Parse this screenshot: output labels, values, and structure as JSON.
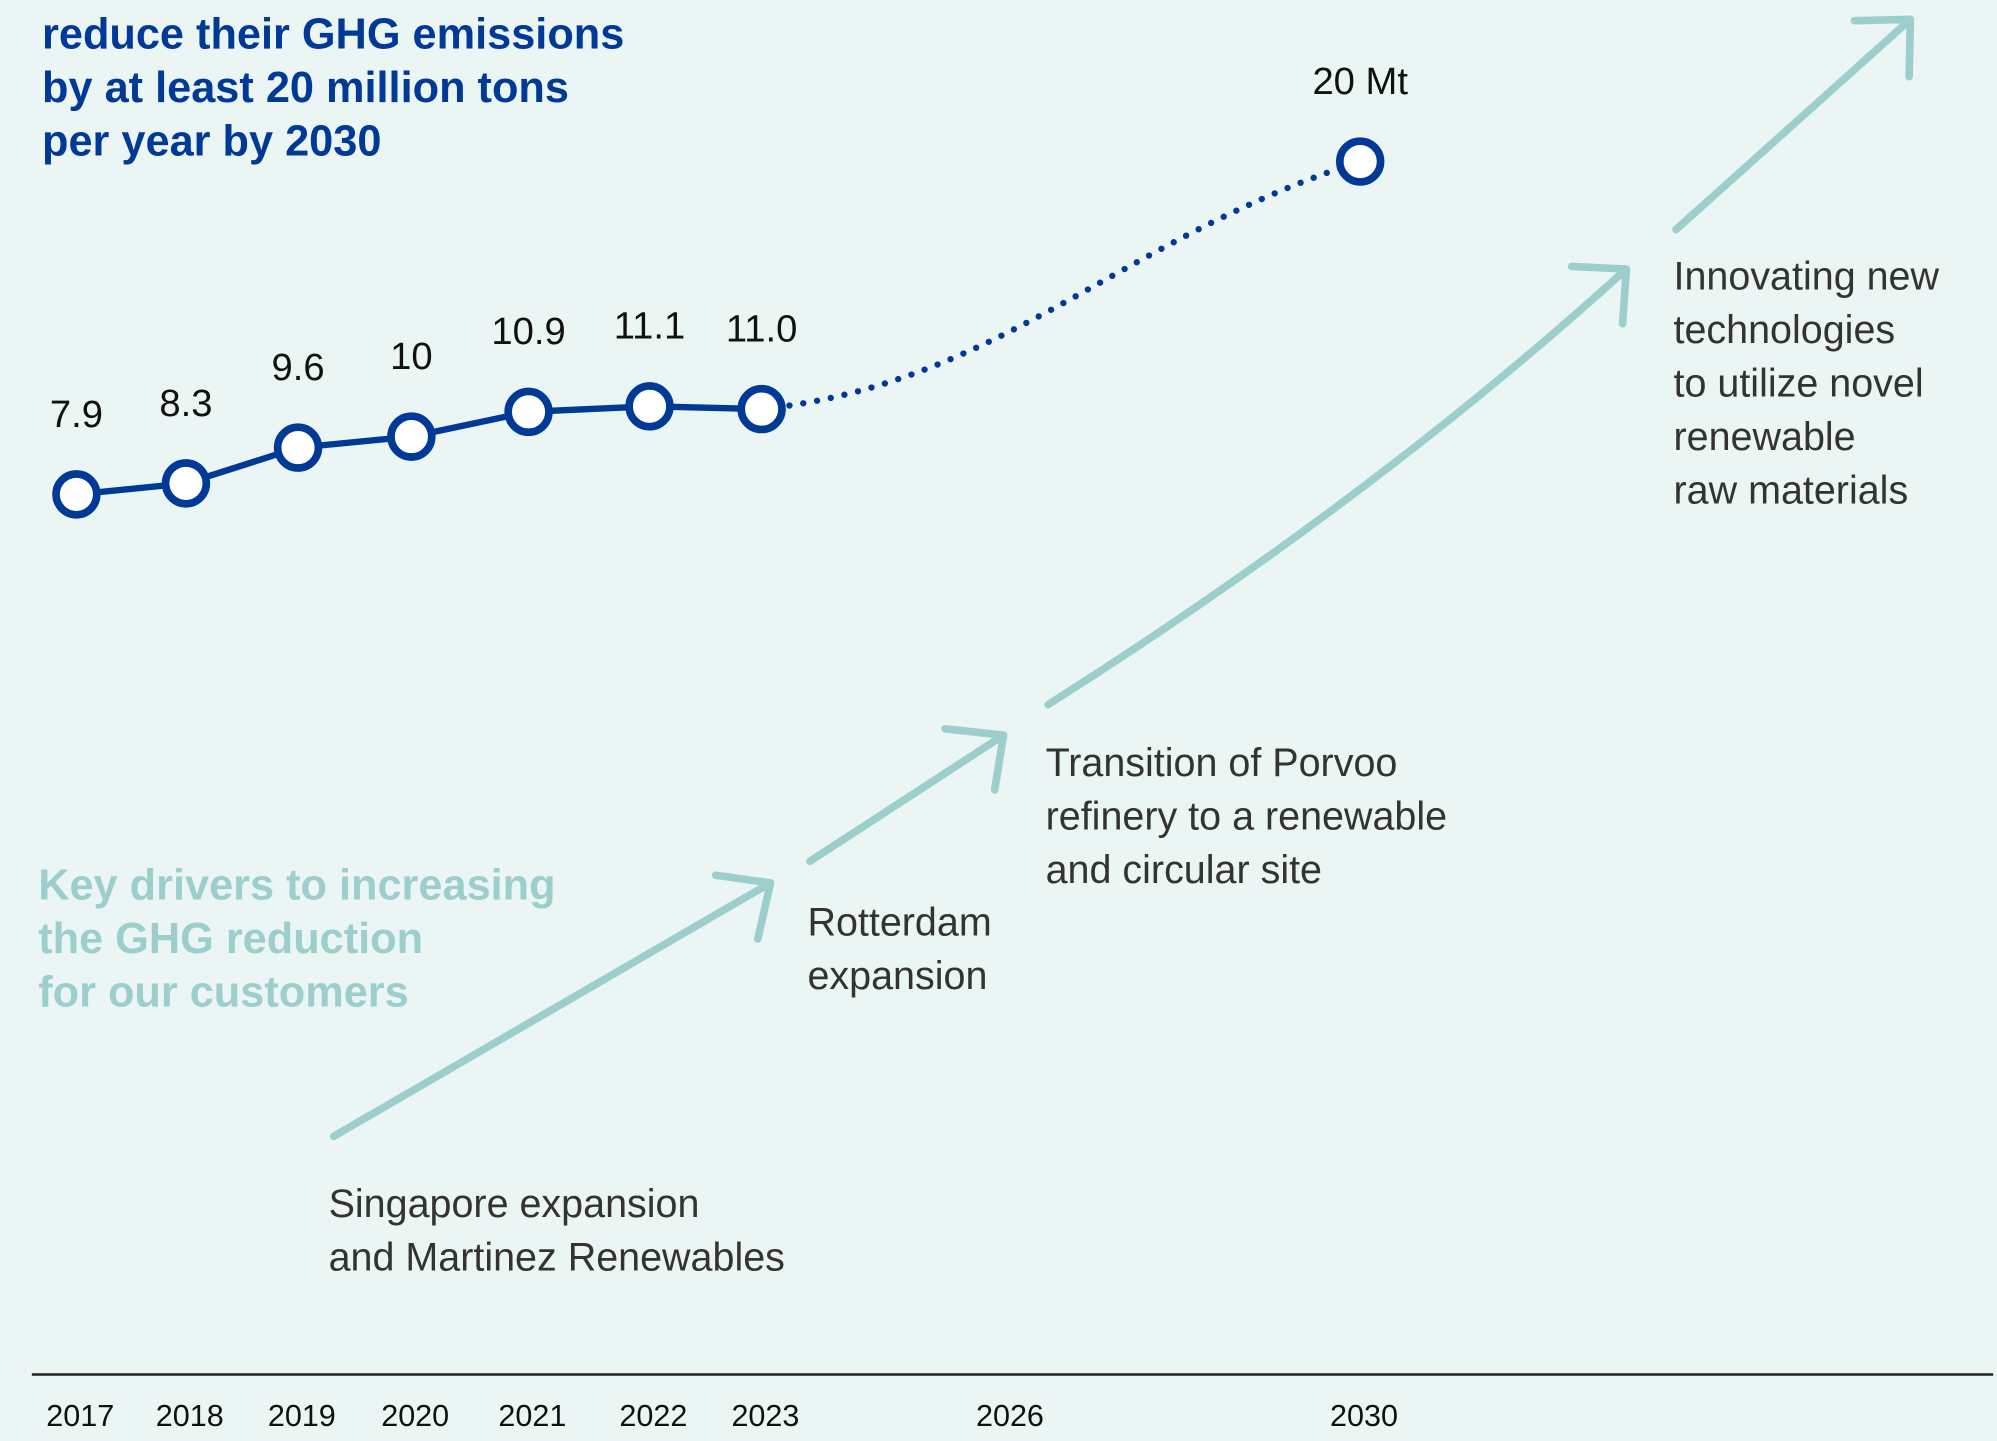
{
  "chart_data": {
    "type": "line",
    "title_lines": [
      "reduce their GHG emissions",
      "by at least 20 million tons",
      "per year by 2030"
    ],
    "categories": [
      "2017",
      "2018",
      "2019",
      "2020",
      "2021",
      "2022",
      "2023",
      "2026",
      "2030"
    ],
    "values": [
      7.9,
      8.3,
      9.6,
      10,
      10.9,
      11.1,
      11,
      null,
      20
    ],
    "value_labels": [
      "7.9",
      "8.3",
      "9.6",
      "10",
      "10.9",
      "11.1",
      "11.0",
      null,
      "20 Mt"
    ],
    "color": "#003a96",
    "ylim": [
      0,
      25
    ],
    "drivers_heading": [
      "Key drivers to increasing",
      "the GHG reduction",
      "for our customers"
    ],
    "drivers": [
      [
        "Singapore expansion",
        "and Martinez Renewables"
      ],
      [
        "Rotterdam",
        "expansion"
      ],
      [
        "Transition of Porvoo",
        "refinery to a renewable",
        "and circular site"
      ],
      [
        "Innovating new",
        "technologies",
        "to utilize novel",
        "renewable",
        "raw materials"
      ]
    ]
  }
}
